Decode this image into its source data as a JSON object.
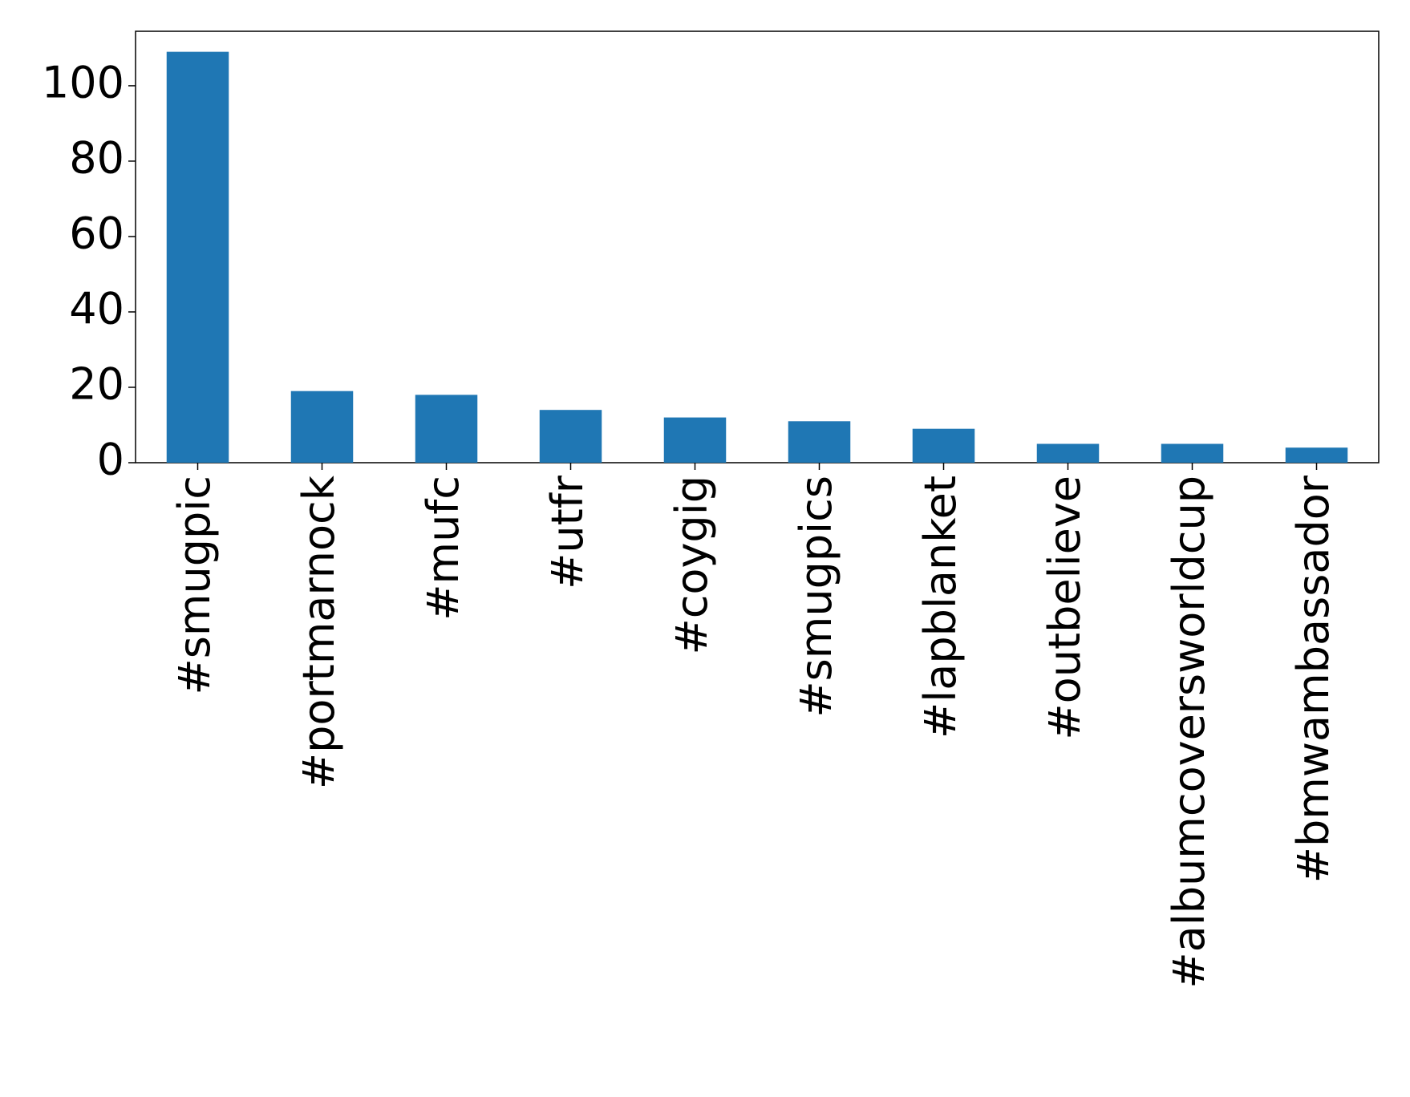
{
  "chart_data": {
    "type": "bar",
    "categories": [
      "#smugpic",
      "#portmarnock",
      "#mufc",
      "#utfr",
      "#coygig",
      "#smugpics",
      "#lapblanket",
      "#outbelieve",
      "#albumcoversworldcup",
      "#bmwambassador"
    ],
    "values": [
      109,
      19,
      18,
      14,
      12,
      11,
      9,
      5,
      5,
      4
    ],
    "color": "#1f77b4",
    "ylim": [
      0,
      114.45
    ],
    "yticks": [
      0,
      20,
      40,
      60,
      80,
      100
    ],
    "grid": false
  }
}
